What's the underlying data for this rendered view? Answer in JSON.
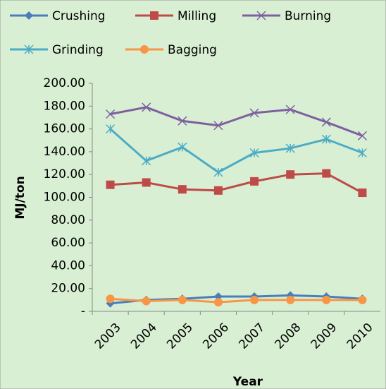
{
  "chart_data": {
    "type": "line",
    "xlabel": "Year",
    "ylabel": "MJ/ton",
    "categories": [
      "2003",
      "2004",
      "2005",
      "2006",
      "2007",
      "2008",
      "2009",
      "2010"
    ],
    "series": [
      {
        "name": "Crushing",
        "color": "#4a7ebb",
        "marker": "diamond",
        "values": [
          7,
          10,
          11,
          13,
          13,
          14,
          13,
          11
        ]
      },
      {
        "name": "Milling",
        "color": "#be4b48",
        "marker": "square",
        "values": [
          111,
          113,
          107,
          106,
          114,
          120,
          121,
          104
        ]
      },
      {
        "name": "Burning",
        "color": "#7d60a0",
        "marker": "x",
        "values": [
          173,
          179,
          167,
          163,
          174,
          177,
          166,
          154
        ]
      },
      {
        "name": "Grinding",
        "color": "#4bacc6",
        "marker": "star",
        "values": [
          160,
          132,
          144,
          122,
          139,
          143,
          151,
          139
        ]
      },
      {
        "name": "Bagging",
        "color": "#f79646",
        "marker": "circle",
        "values": [
          11,
          9,
          10,
          8,
          10,
          10,
          10,
          10
        ]
      }
    ],
    "ylim": [
      0,
      200
    ],
    "yticks": [
      {
        "value": 0,
        "label": "-"
      },
      {
        "value": 20,
        "label": "20.00"
      },
      {
        "value": 40,
        "label": "40.00"
      },
      {
        "value": 60,
        "label": "60.00"
      },
      {
        "value": 80,
        "label": "80.00"
      },
      {
        "value": 100,
        "label": "100.00"
      },
      {
        "value": 120,
        "label": "120.00"
      },
      {
        "value": 140,
        "label": "140.00"
      },
      {
        "value": 160,
        "label": "160.00"
      },
      {
        "value": 180,
        "label": "180.00"
      },
      {
        "value": 200,
        "label": "200.00"
      }
    ],
    "grid": false,
    "legend": "top"
  }
}
